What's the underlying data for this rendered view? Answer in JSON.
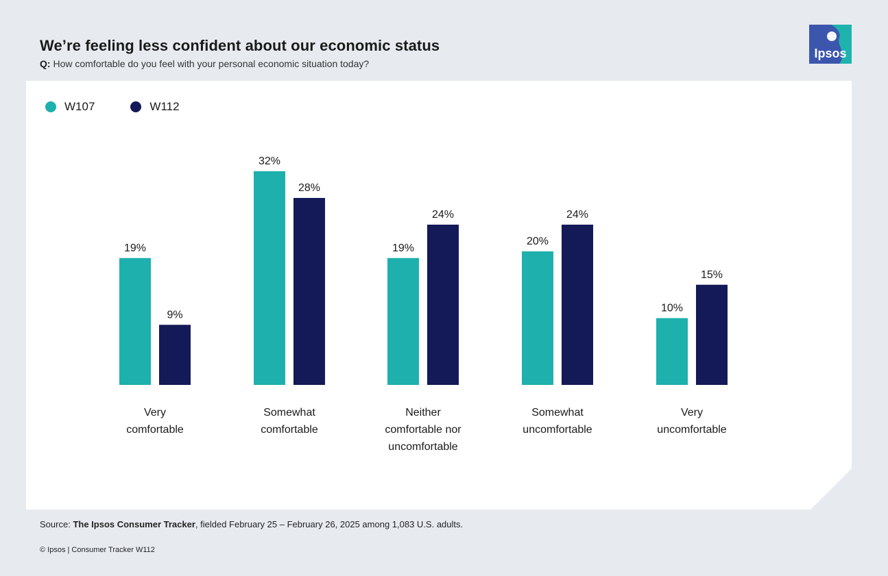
{
  "header": {
    "title": "We’re feeling less confident about our economic status",
    "question_prefix": "Q:",
    "question": "How comfortable do you feel with your personal economic situation today?"
  },
  "logo": {
    "text": "Ipsos",
    "icon": "ipsos-logo-icon",
    "color_left": "#3c56ad",
    "color_right": "#1fb3ad"
  },
  "colors": {
    "w107": "#1eb0ad",
    "w112": "#131a57",
    "background": "#e7ebf0"
  },
  "chart_data": {
    "type": "bar",
    "title": "We’re feeling less confident about our economic status",
    "xlabel": "",
    "ylabel": "",
    "ylim": [
      0,
      32
    ],
    "grid": false,
    "legend_position": "top-left",
    "categories": [
      [
        "Very",
        "comfortable"
      ],
      [
        "Somewhat",
        "comfortable"
      ],
      [
        "Neither",
        "comfortable nor",
        "uncomfortable"
      ],
      [
        "Somewhat",
        "uncomfortable"
      ],
      [
        "Very",
        "uncomfortable"
      ]
    ],
    "series": [
      {
        "name": "W107",
        "color": "#1eb0ad",
        "values": [
          19,
          32,
          19,
          20,
          10
        ],
        "labels": [
          "19%",
          "32%",
          "19%",
          "20%",
          "10%"
        ]
      },
      {
        "name": "W112",
        "color": "#131a57",
        "values": [
          9,
          28,
          24,
          24,
          15
        ],
        "labels": [
          "9%",
          "28%",
          "24%",
          "24%",
          "15%"
        ]
      }
    ]
  },
  "footer": {
    "source_prefix": "Source:",
    "source_bold": "The Ipsos Consumer Tracker",
    "source_rest": ", fielded February 25 – February 26, 2025 among 1,083 U.S. adults.",
    "copyright": "© Ipsos | Consumer Tracker W112"
  }
}
